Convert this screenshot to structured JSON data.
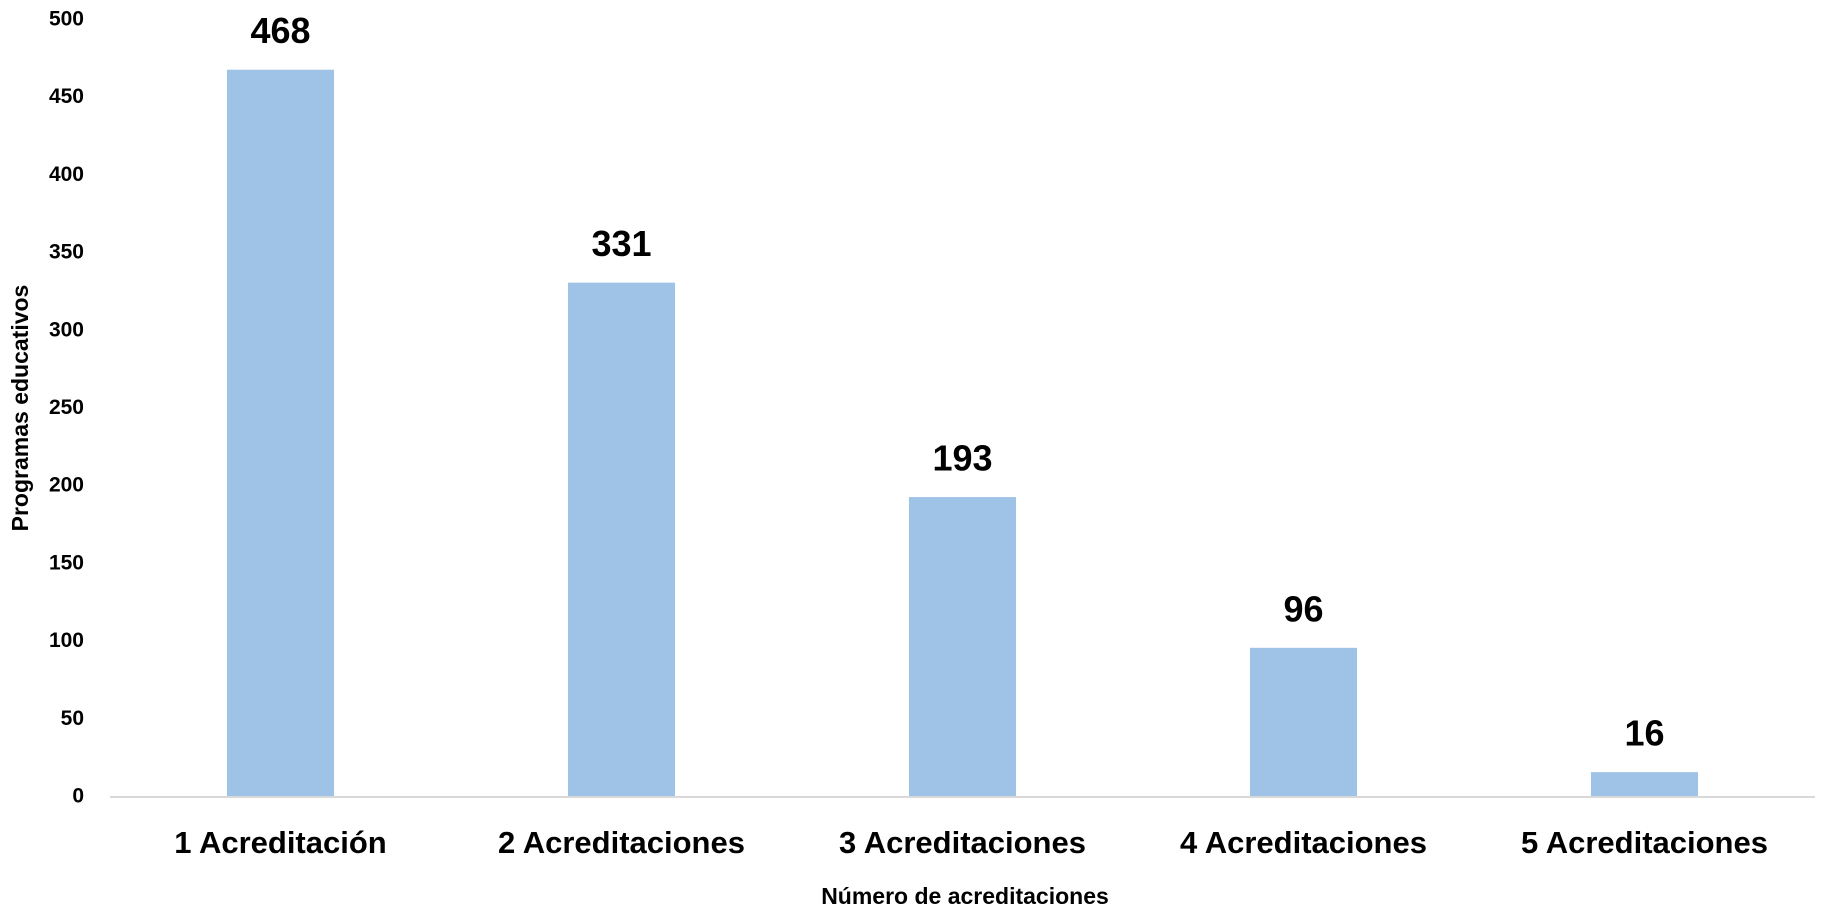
{
  "chart_data": {
    "type": "bar",
    "x_label": "Número de acreditaciones",
    "y_label": "Programas educativos",
    "categories": [
      "1 Acreditación",
      "2 Acreditaciones",
      "3 Acreditaciones",
      "4 Acreditaciones",
      "5 Acreditaciones"
    ],
    "values": [
      468,
      331,
      193,
      96,
      16
    ],
    "color": "#9fc3e7",
    "ylim": [
      0,
      500
    ],
    "yticks": [
      0,
      50,
      100,
      150,
      200,
      250,
      300,
      350,
      400,
      450,
      500
    ],
    "grid": false
  }
}
